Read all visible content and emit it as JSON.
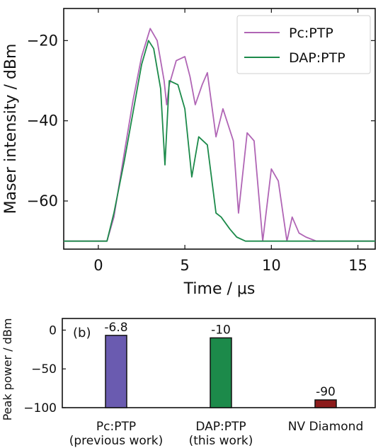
{
  "chart_data": [
    {
      "type": "line",
      "xlabel": "Time / μs",
      "ylabel": "Maser intensity / dBm",
      "xlim": [
        -2,
        16
      ],
      "ylim": [
        -72,
        -12
      ],
      "xticks": [
        "0",
        "5",
        "10",
        "15"
      ],
      "yticks": [
        "−20",
        "−40",
        "−60"
      ],
      "legend_position": "top-right",
      "series": [
        {
          "name": "Pc:PTP",
          "color": "#b065b5",
          "x": [
            -2,
            0.5,
            0.9,
            1.5,
            2.0,
            2.5,
            3.0,
            3.4,
            3.8,
            3.95,
            4.1,
            4.5,
            5.0,
            5.3,
            5.6,
            6.0,
            6.3,
            6.8,
            7.2,
            7.8,
            8.1,
            8.6,
            9.0,
            9.5,
            10.0,
            10.4,
            10.9,
            11.2,
            11.6,
            12.0,
            12.6,
            16
          ],
          "y": [
            -70,
            -70,
            -64,
            -48,
            -35,
            -24,
            -17,
            -20,
            -30,
            -36,
            -31,
            -25,
            -24,
            -29,
            -36,
            -31,
            -28,
            -44,
            -37,
            -45,
            -63,
            -43,
            -45,
            -70,
            -52,
            -55,
            -70,
            -64,
            -68,
            -69,
            -70,
            -70
          ]
        },
        {
          "name": "DAP:PTP",
          "color": "#1c8a4a",
          "x": [
            -2,
            0.5,
            0.9,
            1.5,
            2.0,
            2.5,
            2.9,
            3.2,
            3.6,
            3.85,
            4.1,
            4.6,
            5.0,
            5.4,
            5.8,
            6.3,
            6.8,
            7.1,
            7.6,
            8.0,
            8.5,
            9.0,
            16
          ],
          "y": [
            -70,
            -70,
            -63,
            -50,
            -38,
            -26,
            -20,
            -22,
            -32,
            -51,
            -30,
            -31,
            -37,
            -54,
            -44,
            -46,
            -63,
            -64,
            -67,
            -69,
            -70,
            -70,
            -70
          ]
        }
      ]
    },
    {
      "type": "bar",
      "panel_label": "(b)",
      "ylabel": "Peak power / dBm",
      "ylim": [
        -100,
        15
      ],
      "yticks": [
        "0",
        "−50",
        "−100"
      ],
      "categories": [
        [
          "Pc:PTP",
          "(previous work)"
        ],
        [
          "DAP:PTP",
          "(this work)"
        ],
        [
          "NV Diamond",
          ""
        ]
      ],
      "values": [
        -6.8,
        -10,
        -90
      ],
      "value_labels": [
        "-6.8",
        "-10",
        "-90"
      ],
      "colors": [
        "#6a5bb0",
        "#1c8a4a",
        "#8c1b1b"
      ]
    }
  ]
}
